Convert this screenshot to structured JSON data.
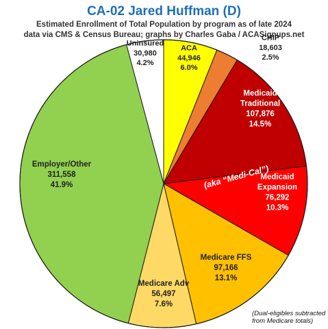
{
  "title": "CA-02 Jared Huffman (D)",
  "subtitle_line1": "Estimated Enrollment of Total Population by program as of late 2024",
  "subtitle_line2": "data via CMS & Census Bureau; graphs by Charles Gaba / ACASignups.net",
  "aka_label": "(aka “Medi-Cal”)",
  "note_line1": "(Dual-eligibles subtracted",
  "note_line2": "from Medicare totals)",
  "chart_data": {
    "type": "pie",
    "slices": [
      {
        "lines": [
          "ACA"
        ],
        "value_text": "44,946",
        "pct_text": "6.0%",
        "value": 44946,
        "color": "#ffff00",
        "text_color": "#222222"
      },
      {
        "lines": [
          "CHIP"
        ],
        "value_text": "18,603",
        "pct_text": "2.5%",
        "value": 18603,
        "color": "#ed7d31",
        "text_color": "#222222"
      },
      {
        "lines": [
          "Medicaid",
          "Traditional"
        ],
        "value_text": "107,876",
        "pct_text": "14.5%",
        "value": 107876,
        "color": "#c00000",
        "text_color": "#ffffff"
      },
      {
        "lines": [
          "Medicaid",
          "Expansion"
        ],
        "value_text": "76,292",
        "pct_text": "10.3%",
        "value": 76292,
        "color": "#ff0000",
        "text_color": "#ffffff"
      },
      {
        "lines": [
          "Medicare FFS"
        ],
        "value_text": "97,166",
        "pct_text": "13.1%",
        "value": 97166,
        "color": "#ffc000",
        "text_color": "#222222"
      },
      {
        "lines": [
          "Medicare Adv"
        ],
        "value_text": "56,497",
        "pct_text": "7.6%",
        "value": 56497,
        "color": "#ffd966",
        "text_color": "#222222"
      },
      {
        "lines": [
          "Employer/Other"
        ],
        "value_text": "311,558",
        "pct_text": "41.9%",
        "value": 311558,
        "color": "#92d050",
        "text_color": "#222222"
      },
      {
        "lines": [
          "Uninsured"
        ],
        "value_text": "30,980",
        "pct_text": "4.2%",
        "value": 30980,
        "color": "#ffffff",
        "text_color": "#222222"
      }
    ]
  }
}
